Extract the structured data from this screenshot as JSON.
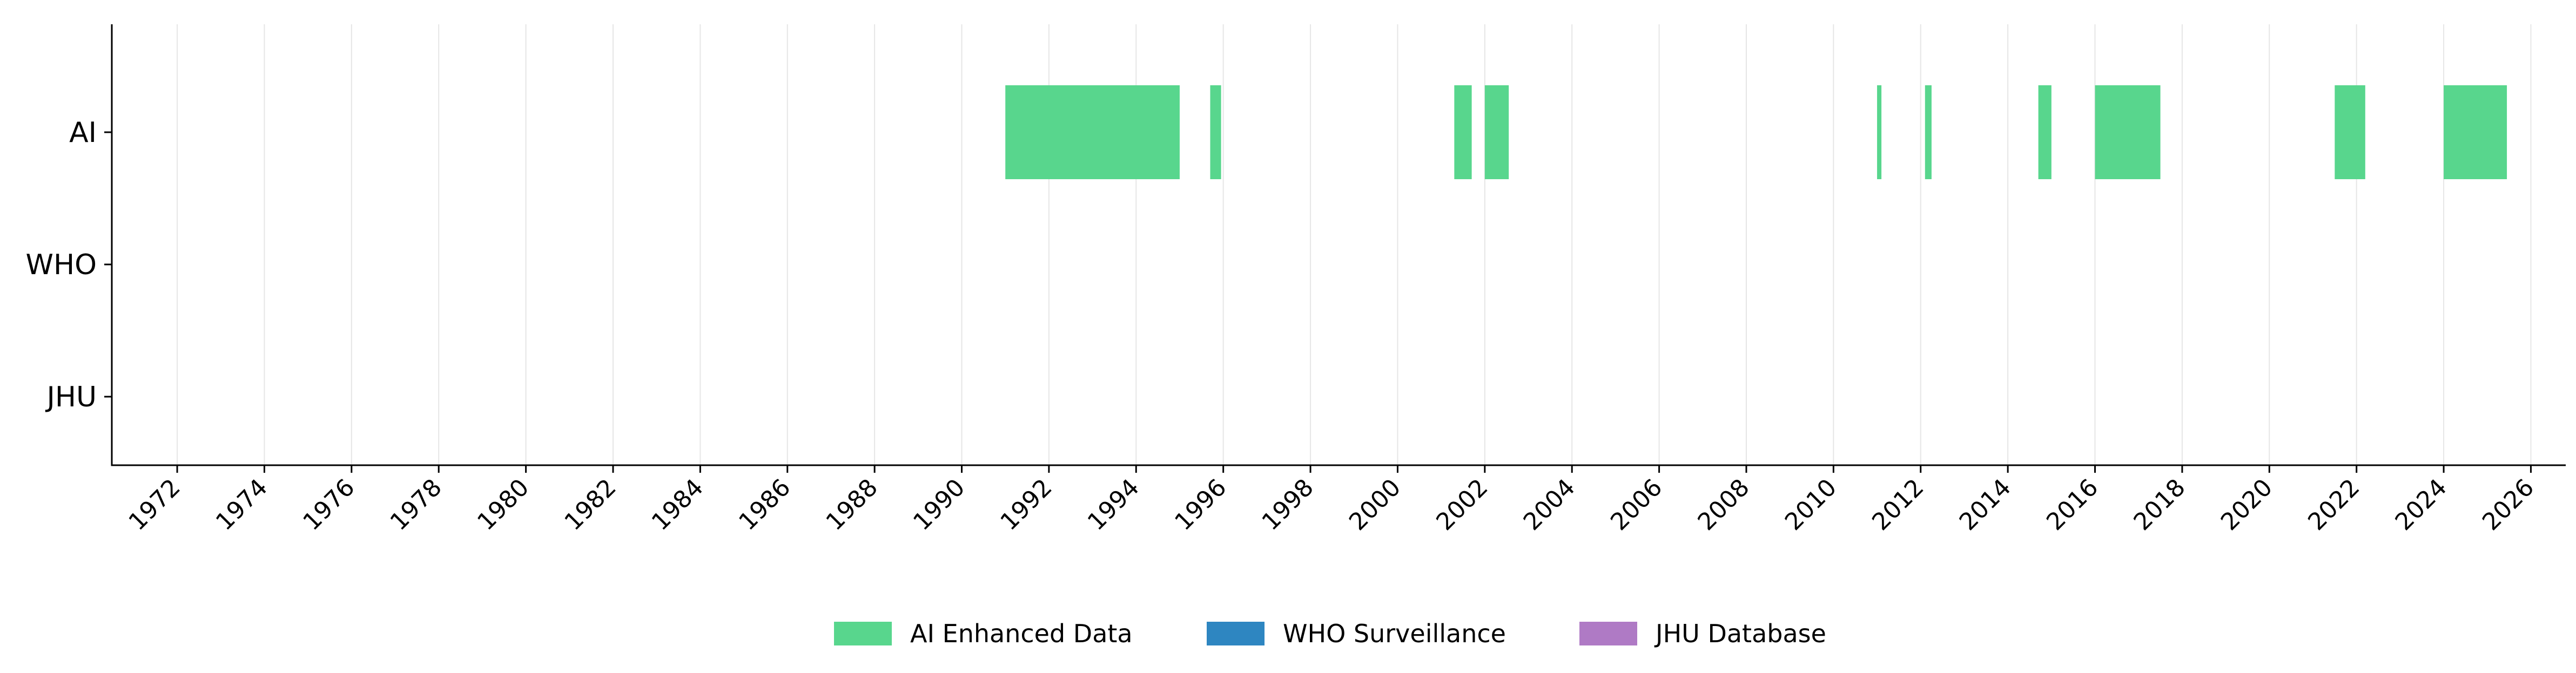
{
  "chart_data": {
    "type": "timeline",
    "title": "",
    "xlabel": "",
    "ylabel": "",
    "xlim": [
      1970.5,
      2026.8
    ],
    "x_ticks": [
      1972,
      1974,
      1976,
      1978,
      1980,
      1982,
      1984,
      1986,
      1988,
      1990,
      1992,
      1994,
      1996,
      1998,
      2000,
      2002,
      2004,
      2006,
      2008,
      2010,
      2012,
      2014,
      2016,
      2018,
      2020,
      2022,
      2024,
      2026
    ],
    "grid": "vertical",
    "legend_position": "bottom-center",
    "rows": [
      "AI",
      "WHO",
      "JHU"
    ],
    "series": [
      {
        "name": "AI Enhanced Data",
        "row": "AI",
        "color": "#58d68d",
        "intervals": [
          [
            1991.0,
            1995.0
          ],
          [
            1995.7,
            1995.95
          ],
          [
            2001.3,
            2001.7
          ],
          [
            2002.0,
            2002.55
          ],
          [
            2011.0,
            2011.1
          ],
          [
            2012.1,
            2012.25
          ],
          [
            2014.7,
            2015.0
          ],
          [
            2016.0,
            2017.5
          ],
          [
            2021.5,
            2022.2
          ],
          [
            2024.0,
            2025.45
          ]
        ]
      },
      {
        "name": "WHO Surveillance",
        "row": "WHO",
        "color": "#2e86c1",
        "intervals": []
      },
      {
        "name": "JHU Database",
        "row": "JHU",
        "color": "#af7ac5",
        "intervals": []
      }
    ]
  }
}
